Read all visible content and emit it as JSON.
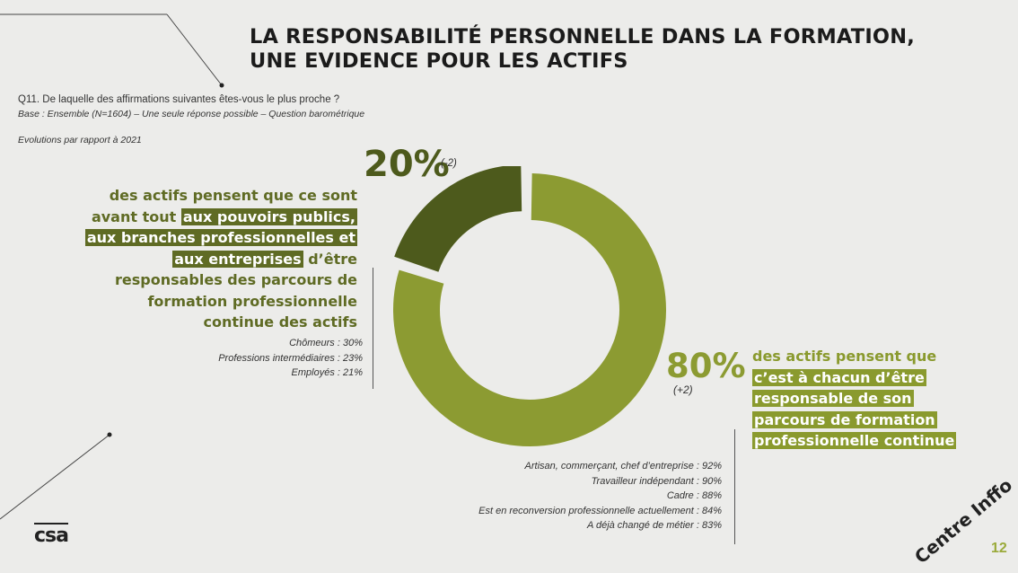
{
  "title_line1": "LA RESPONSABILITÉ PERSONNELLE DANS LA FORMATION,",
  "title_line2": "UNE EVIDENCE POUR LES ACTIFS",
  "question": "Q11. De laquelle des affirmations suivantes êtes-vous le plus proche ?",
  "base": "Base : Ensemble (N=1604) – Une seule réponse possible – Question barométrique",
  "evolution_note": "Evolutions par rapport à 2021",
  "left": {
    "percent": "20%",
    "change": "(-2)",
    "statement": {
      "l1": "des actifs pensent que ce sont",
      "l2a": "avant tout ",
      "l2b": "aux pouvoirs publics,",
      "l3": "aux branches professionnelles et",
      "l4a": "aux entreprises",
      "l4b": " d’être",
      "l5": "responsables des parcours de",
      "l6": "formation professionnelle",
      "l7": "continue des actifs"
    },
    "breakdown": [
      "Chômeurs : 30%",
      "Professions intermédiaires : 23%",
      "Employés : 21%"
    ]
  },
  "right": {
    "percent": "80%",
    "change": "(+2)",
    "statement": {
      "l1": "des actifs pensent que",
      "l2": "c’est à chacun d’être",
      "l3": "responsable de son",
      "l4": "parcours de formation",
      "l5": "professionnelle continue"
    },
    "breakdown": [
      "Artisan, commerçant, chef d’entreprise : 92%",
      "Travailleur indépendant : 90%",
      "Cadre : 88%",
      "Est en reconversion professionnelle actuellement : 84%",
      "A déjà changé de métier : 83%"
    ]
  },
  "chart_data": {
    "type": "pie",
    "variant": "donut",
    "slices": [
      {
        "label": "Pouvoirs publics, branches professionnelles et entreprises",
        "value": 20,
        "color": "#4d5a1c",
        "exploded": true
      },
      {
        "label": "Chacun",
        "value": 80,
        "color": "#8c9b32",
        "exploded": false
      }
    ]
  },
  "logo_text": "csa",
  "brand": "Centre Inffo",
  "page_number": "12"
}
